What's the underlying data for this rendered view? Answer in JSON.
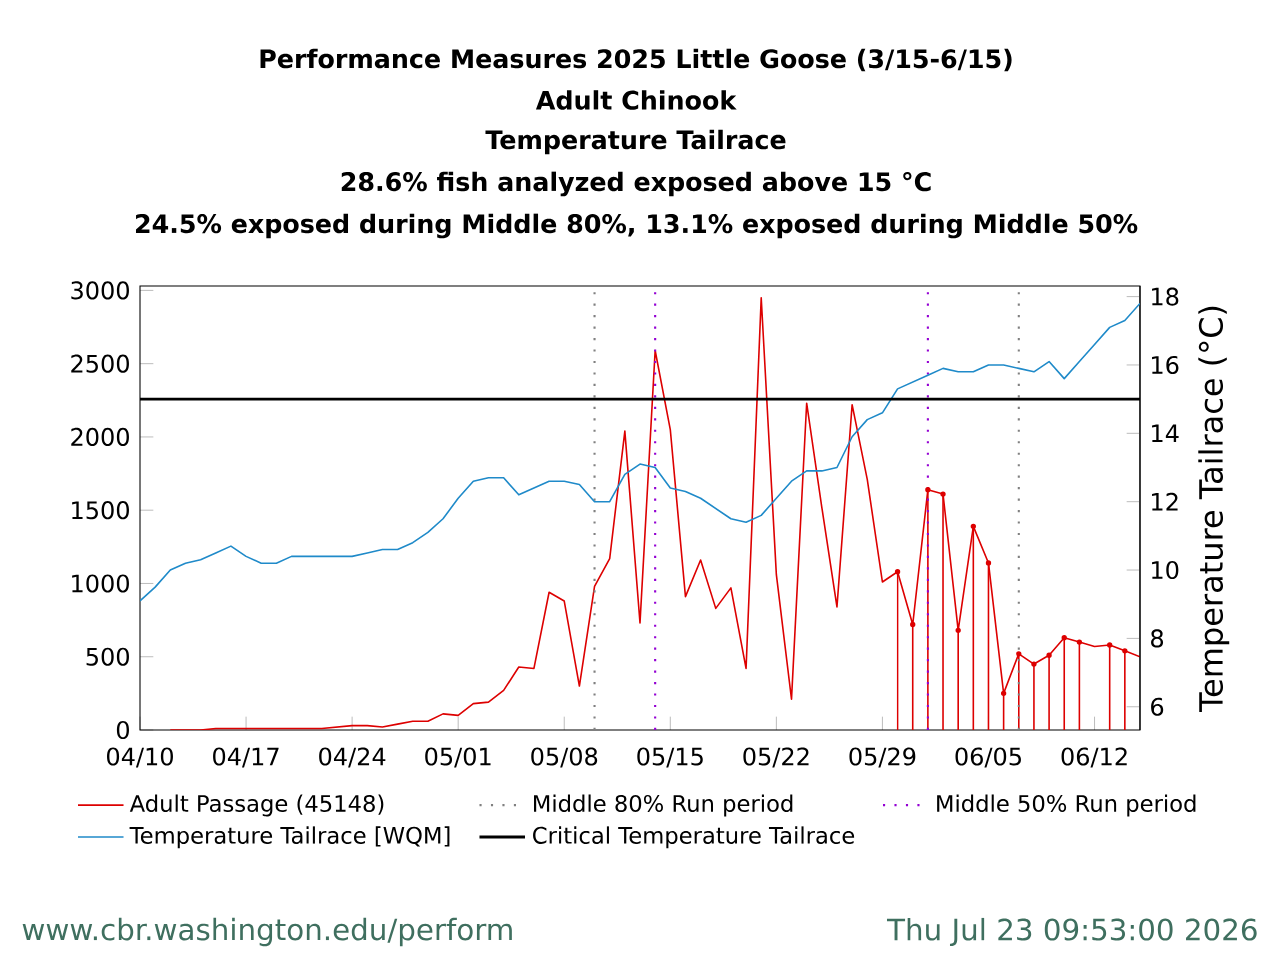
{
  "chart_data": {
    "type": "line",
    "title": "Performance Measures 2025 Little Goose (3/15-6/15)",
    "subtitle": "Adult Chinook",
    "annotations": [
      "Temperature Tailrace",
      "28.6% fish analyzed exposed above 15 °C",
      "24.5% exposed during Middle 80%, 13.1% exposed during Middle 50%",
      "www.cbr.washington.edu/perform",
      "Thu Jul 23 09:53:00 2026"
    ],
    "y2label": "Temperature Tailrace (°C)",
    "x": [
      "2025-04-10",
      "2025-04-11",
      "2025-04-12",
      "2025-04-13",
      "2025-04-14",
      "2025-04-15",
      "2025-04-16",
      "2025-04-17",
      "2025-04-18",
      "2025-04-19",
      "2025-04-20",
      "2025-04-21",
      "2025-04-22",
      "2025-04-23",
      "2025-04-24",
      "2025-04-25",
      "2025-04-26",
      "2025-04-27",
      "2025-04-28",
      "2025-04-29",
      "2025-04-30",
      "2025-05-01",
      "2025-05-02",
      "2025-05-03",
      "2025-05-04",
      "2025-05-05",
      "2025-05-06",
      "2025-05-07",
      "2025-05-08",
      "2025-05-09",
      "2025-05-10",
      "2025-05-11",
      "2025-05-12",
      "2025-05-13",
      "2025-05-14",
      "2025-05-15",
      "2025-05-16",
      "2025-05-17",
      "2025-05-18",
      "2025-05-19",
      "2025-05-20",
      "2025-05-21",
      "2025-05-22",
      "2025-05-23",
      "2025-05-24",
      "2025-05-25",
      "2025-05-26",
      "2025-05-27",
      "2025-05-28",
      "2025-05-29",
      "2025-05-30",
      "2025-05-31",
      "2025-06-01",
      "2025-06-02",
      "2025-06-03",
      "2025-06-04",
      "2025-06-05",
      "2025-06-06",
      "2025-06-07",
      "2025-06-08",
      "2025-06-09",
      "2025-06-10",
      "2025-06-11",
      "2025-06-12",
      "2025-06-13",
      "2025-06-14",
      "2025-06-15"
    ],
    "xlim": [
      "2025-04-10",
      "2025-06-15"
    ],
    "xticks": [
      {
        "value": "2025-04-10",
        "label": "04/10"
      },
      {
        "value": "2025-04-17",
        "label": "04/17"
      },
      {
        "value": "2025-04-24",
        "label": "04/24"
      },
      {
        "value": "2025-05-01",
        "label": "05/01"
      },
      {
        "value": "2025-05-08",
        "label": "05/08"
      },
      {
        "value": "2025-05-15",
        "label": "05/15"
      },
      {
        "value": "2025-05-22",
        "label": "05/22"
      },
      {
        "value": "2025-05-29",
        "label": "05/29"
      },
      {
        "value": "2025-06-05",
        "label": "06/05"
      },
      {
        "value": "2025-06-12",
        "label": "06/12"
      }
    ],
    "ylim": [
      0,
      3030
    ],
    "yticks": [
      0,
      500,
      1000,
      1500,
      2000,
      2500,
      3000
    ],
    "y2lim": [
      5.32,
      18.31
    ],
    "y2ticks": [
      6,
      8,
      10,
      12,
      14,
      16,
      18
    ],
    "series": [
      {
        "name": "Adult Passage (45148)",
        "type": "line",
        "color": "#dd0000",
        "values": [
          null,
          null,
          0,
          0,
          0,
          10,
          10,
          10,
          10,
          10,
          10,
          10,
          10,
          20,
          30,
          30,
          20,
          40,
          60,
          60,
          110,
          100,
          180,
          190,
          270,
          430,
          420,
          940,
          880,
          300,
          980,
          1170,
          2040,
          730,
          2590,
          2050,
          910,
          1160,
          830,
          970,
          420,
          2950,
          1060,
          210,
          2230,
          1520,
          840,
          2220,
          1710,
          1010,
          1080,
          720,
          1640,
          1610,
          680,
          1390,
          1140,
          250,
          520,
          450,
          510,
          630,
          600,
          570,
          580,
          540,
          500
        ]
      },
      {
        "type": "lollipop",
        "color": "#dd0000",
        "x": [
          "2025-05-30",
          "2025-05-31",
          "2025-06-01",
          "2025-06-02",
          "2025-06-03",
          "2025-06-04",
          "2025-06-05",
          "2025-06-06",
          "2025-06-07",
          "2025-06-08",
          "2025-06-09",
          "2025-06-10",
          "2025-06-11",
          "2025-06-13",
          "2025-06-14"
        ],
        "values": [
          1080,
          720,
          1640,
          1610,
          680,
          1390,
          1140,
          250,
          520,
          450,
          510,
          630,
          600,
          580,
          540
        ]
      },
      {
        "name": "Temperature Tailrace [WQM]",
        "type": "line",
        "axis": "y2",
        "color": "#1f8ac9",
        "values": [
          9.1,
          9.5,
          10.0,
          10.2,
          10.3,
          10.5,
          10.7,
          10.4,
          10.2,
          10.2,
          10.4,
          10.4,
          10.4,
          10.4,
          10.4,
          10.5,
          10.6,
          10.6,
          10.8,
          11.1,
          11.5,
          12.1,
          12.6,
          12.7,
          12.7,
          12.2,
          12.4,
          12.6,
          12.6,
          12.5,
          12.0,
          12.0,
          12.8,
          13.1,
          13.0,
          12.4,
          12.3,
          12.1,
          11.8,
          11.5,
          11.4,
          11.6,
          12.1,
          12.6,
          12.9,
          12.9,
          13.0,
          13.9,
          14.4,
          14.6,
          15.3,
          15.5,
          15.7,
          15.9,
          15.8,
          15.8,
          16.0,
          16.0,
          15.9,
          15.8,
          16.1,
          15.6,
          16.1,
          16.6,
          17.1,
          17.3,
          17.8
        ]
      }
    ],
    "ref_lines": [
      {
        "axis": "x",
        "value": "2025-05-10",
        "label": "Middle 80% Run period",
        "color": "#808080",
        "line_style": "dotted"
      },
      {
        "axis": "x",
        "value": "2025-06-07",
        "color": "#808080",
        "line_style": "dotted"
      },
      {
        "axis": "x",
        "value": "2025-05-14",
        "label": "Middle 50% Run period",
        "color": "#9400d3",
        "line_style": "dotted"
      },
      {
        "axis": "x",
        "value": "2025-06-01",
        "color": "#9400d3",
        "line_style": "dotted"
      },
      {
        "axis": "y2",
        "value": 15,
        "label": "Critical Temperature Tailrace",
        "color": "#000000",
        "line_style": "solid"
      }
    ],
    "legend": "bottom"
  }
}
